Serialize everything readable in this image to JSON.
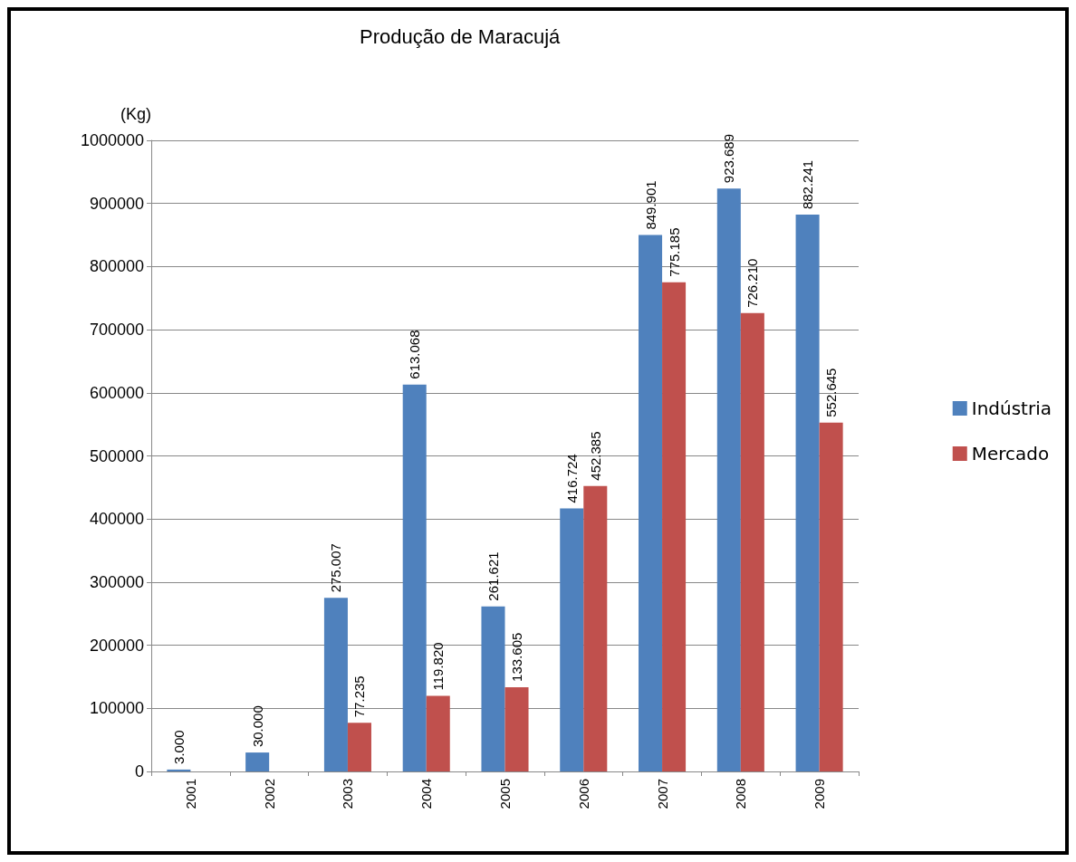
{
  "chart_data": {
    "type": "bar",
    "title": "Produção de Maracujá",
    "ylabel": "(Kg)",
    "categories": [
      "2001",
      "2002",
      "2003",
      "2004",
      "2005",
      "2006",
      "2007",
      "2008",
      "2009"
    ],
    "series": [
      {
        "name": "Indústria",
        "color": "#4f81bd",
        "values": [
          3000,
          30000,
          275007,
          613068,
          261621,
          416724,
          849901,
          923689,
          882241
        ],
        "value_labels": [
          "3.000",
          "30.000",
          "275.007",
          "613.068",
          "261.621",
          "416.724",
          "849.901",
          "923.689",
          "882.241"
        ]
      },
      {
        "name": "Mercado",
        "color": "#c0504d",
        "values": [
          null,
          null,
          77235,
          119820,
          133605,
          452385,
          775185,
          726210,
          552645
        ],
        "value_labels": [
          null,
          null,
          "77.235",
          "119.820",
          "133.605",
          "452.385",
          "775.185",
          "726.210",
          "552.645"
        ]
      }
    ],
    "ylim": [
      0,
      1000000
    ],
    "yticks": [
      0,
      100000,
      200000,
      300000,
      400000,
      500000,
      600000,
      700000,
      800000,
      900000,
      1000000
    ],
    "grid": "y",
    "legend": "right"
  }
}
